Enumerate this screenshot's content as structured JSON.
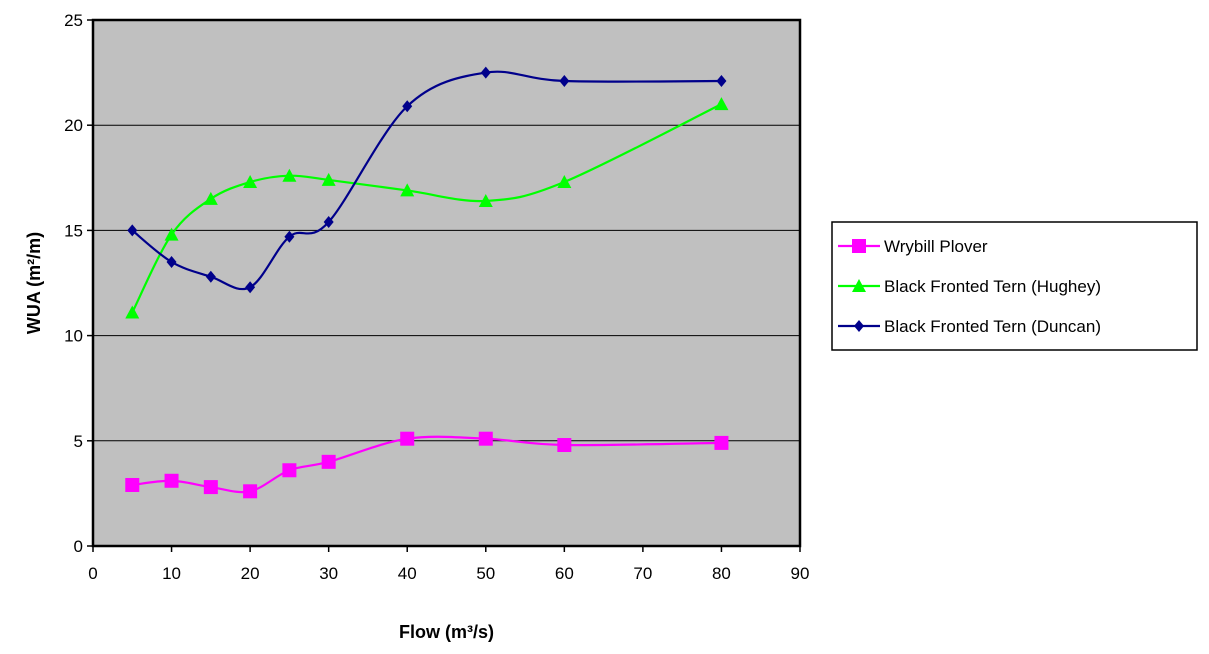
{
  "chart_data": {
    "type": "line",
    "xlabel": "Flow (m³/s)",
    "ylabel": "WUA (m²/m)",
    "xlim": [
      0,
      90
    ],
    "ylim": [
      0,
      25
    ],
    "xticks": [
      "0",
      "10",
      "20",
      "30",
      "40",
      "50",
      "60",
      "70",
      "80",
      "90"
    ],
    "yticks": [
      "0",
      "5",
      "10",
      "15",
      "20",
      "25"
    ],
    "grid": "horizontal",
    "legend_position": "right",
    "plot_background": "#c0c0c0",
    "smooth": true,
    "x": [
      5,
      10,
      15,
      20,
      25,
      30,
      40,
      50,
      60,
      80
    ],
    "series": [
      {
        "name": "Wrybill Plover",
        "color": "#ff00ff",
        "marker": "square",
        "values": [
          2.9,
          3.1,
          2.8,
          2.6,
          3.6,
          4.0,
          5.1,
          5.1,
          4.8,
          4.9
        ]
      },
      {
        "name": "Black Fronted Tern (Hughey)",
        "color": "#00ff00",
        "marker": "triangle",
        "values": [
          11.1,
          14.8,
          16.5,
          17.3,
          17.6,
          17.4,
          16.9,
          16.4,
          17.3,
          21.0
        ]
      },
      {
        "name": "Black Fronted Tern (Duncan)",
        "color": "#00008b",
        "marker": "diamond",
        "values": [
          15.0,
          13.5,
          12.8,
          12.3,
          14.7,
          15.4,
          20.9,
          22.5,
          22.1,
          22.1
        ]
      }
    ]
  }
}
